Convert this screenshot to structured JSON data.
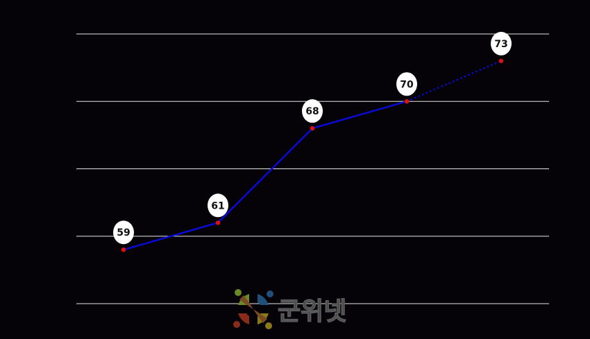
{
  "chart_data": {
    "type": "line",
    "categories": [
      "",
      "",
      "",
      "",
      ""
    ],
    "series": [
      {
        "values": [
          59,
          61,
          68,
          70,
          73
        ],
        "projected_from_index": 3
      }
    ],
    "ylim": [
      55,
      75
    ],
    "y_grid_step": 5,
    "grid": true,
    "data_labels": true,
    "title": "",
    "xlabel": "",
    "ylabel": ""
  },
  "colors": {
    "background": "#050307",
    "grid": "#e6e6e6",
    "line": "#0a0ad0",
    "point": "#e01010",
    "label_bubble": "#ffffff"
  },
  "watermark": {
    "text": "군위넷",
    "icon": "gunwi-logo-icon"
  }
}
